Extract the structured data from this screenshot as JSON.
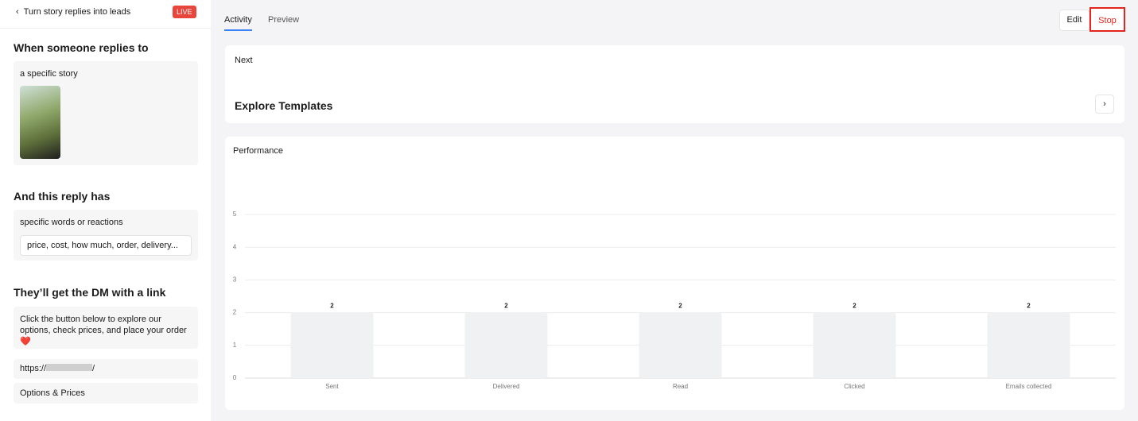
{
  "sidebar": {
    "back_title": "Turn story replies into leads",
    "badge": "LIVE",
    "trigger": {
      "heading": "When someone replies to",
      "label": "a specific story"
    },
    "condition": {
      "heading": "And this reply has",
      "label": "specific words or reactions",
      "keywords": "price, cost, how much, order, delivery..."
    },
    "action": {
      "heading": "They’ll get the DM with a link",
      "message": "Click the button below to explore our options, check prices, and place your order ❤️",
      "link_prefix": "https://",
      "link_suffix": "/",
      "button": "Options & Prices"
    }
  },
  "tabs": [
    "Activity",
    "Preview"
  ],
  "buttons": {
    "edit": "Edit",
    "stop": "Stop"
  },
  "next_card": {
    "label": "Next",
    "title": "Explore Templates"
  },
  "performance_title": "Performance",
  "chart_data": {
    "type": "bar",
    "categories": [
      "Sent",
      "Delivered",
      "Read",
      "Clicked",
      "Emails collected"
    ],
    "values": [
      2,
      2,
      2,
      2,
      2
    ],
    "color": "#f0f1f3",
    "ylim": [
      0,
      5
    ],
    "yticks": [
      0,
      1,
      2,
      3,
      4,
      5
    ],
    "grid": true
  }
}
